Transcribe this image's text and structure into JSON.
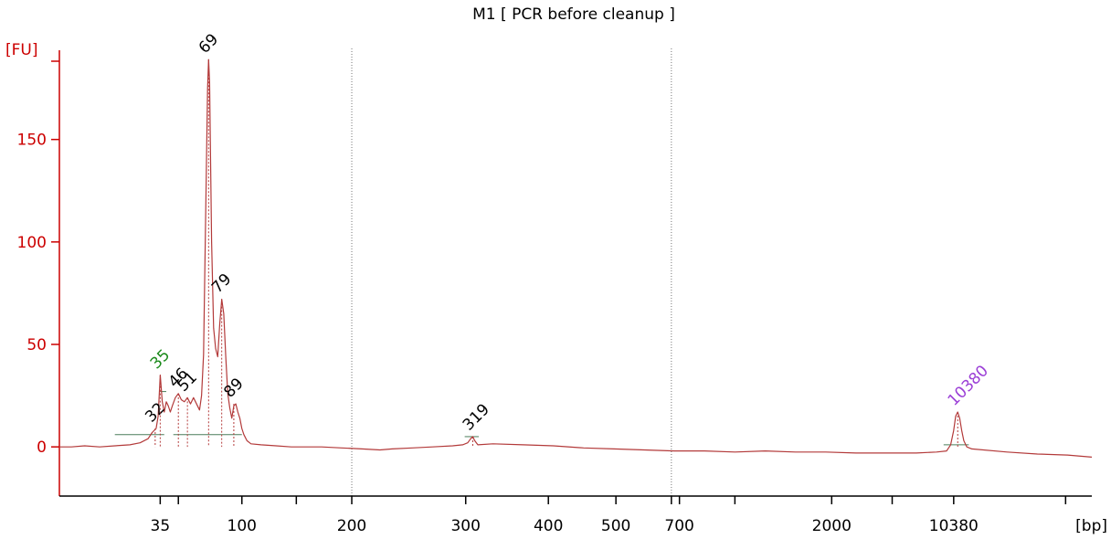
{
  "chart_data": {
    "type": "line",
    "title": "M1  [ PCR before cleanup ]",
    "ylabel": "[FU]",
    "xlabel": "[bp]",
    "ylim": [
      -24,
      198
    ],
    "y_ticks": [
      0,
      50,
      100,
      150
    ],
    "x_tick_labels": [
      "35",
      "100",
      "200",
      "300",
      "400",
      "500",
      "700",
      "2000",
      "10380"
    ],
    "colors": {
      "trace": "#b33a3a",
      "axis": "#cc0000",
      "baseline": "#4a7d5a",
      "marker_lower": "#1b8a1b",
      "marker_upper": "#9b3fd6",
      "peak_label": "#000000"
    },
    "trace": [
      [
        0,
        0
      ],
      [
        12,
        0
      ],
      [
        25,
        0.5
      ],
      [
        40,
        0
      ],
      [
        55,
        0.5
      ],
      [
        70,
        1
      ],
      [
        80,
        2
      ],
      [
        88,
        4
      ],
      [
        92,
        7
      ],
      [
        96,
        9
      ],
      [
        98,
        15
      ],
      [
        100,
        35
      ],
      [
        102,
        22
      ],
      [
        104,
        17
      ],
      [
        106,
        22
      ],
      [
        108,
        20
      ],
      [
        110,
        17
      ],
      [
        112,
        20
      ],
      [
        115,
        24
      ],
      [
        118,
        26
      ],
      [
        121,
        23
      ],
      [
        124,
        22
      ],
      [
        127,
        24
      ],
      [
        130,
        21
      ],
      [
        133,
        24
      ],
      [
        135,
        22
      ],
      [
        137,
        20
      ],
      [
        139,
        18
      ],
      [
        141,
        25
      ],
      [
        143,
        45
      ],
      [
        145,
        110
      ],
      [
        147,
        175
      ],
      [
        148,
        189
      ],
      [
        149,
        178
      ],
      [
        151,
        100
      ],
      [
        153,
        58
      ],
      [
        155,
        48
      ],
      [
        157,
        44
      ],
      [
        159,
        60
      ],
      [
        161,
        72
      ],
      [
        163,
        65
      ],
      [
        165,
        44
      ],
      [
        167,
        26
      ],
      [
        169,
        19
      ],
      [
        171,
        14
      ],
      [
        173,
        20
      ],
      [
        175,
        21
      ],
      [
        177,
        17
      ],
      [
        179,
        14
      ],
      [
        181,
        9
      ],
      [
        183,
        6
      ],
      [
        186,
        3
      ],
      [
        190,
        1.5
      ],
      [
        200,
        1
      ],
      [
        215,
        0.5
      ],
      [
        230,
        0
      ],
      [
        260,
        0
      ],
      [
        280,
        -0.5
      ],
      [
        300,
        -1
      ],
      [
        318,
        -1.5
      ],
      [
        330,
        -1
      ],
      [
        350,
        -0.5
      ],
      [
        370,
        0
      ],
      [
        390,
        0.5
      ],
      [
        400,
        1
      ],
      [
        405,
        2
      ],
      [
        408,
        4
      ],
      [
        410,
        5
      ],
      [
        412,
        3
      ],
      [
        415,
        1
      ],
      [
        430,
        1.5
      ],
      [
        460,
        1
      ],
      [
        490,
        0.5
      ],
      [
        520,
        -0.5
      ],
      [
        550,
        -1
      ],
      [
        580,
        -1.5
      ],
      [
        610,
        -2
      ],
      [
        640,
        -2
      ],
      [
        670,
        -2.5
      ],
      [
        700,
        -2
      ],
      [
        730,
        -2.5
      ],
      [
        760,
        -2.5
      ],
      [
        790,
        -3
      ],
      [
        820,
        -3
      ],
      [
        850,
        -3
      ],
      [
        870,
        -2.5
      ],
      [
        880,
        -2
      ],
      [
        884,
        1
      ],
      [
        887,
        8
      ],
      [
        889,
        15
      ],
      [
        891,
        17
      ],
      [
        893,
        14
      ],
      [
        895,
        8
      ],
      [
        897,
        3
      ],
      [
        900,
        0
      ],
      [
        905,
        -1
      ],
      [
        940,
        -2.5
      ],
      [
        970,
        -3.5
      ],
      [
        1000,
        -4
      ],
      [
        1024,
        -5
      ]
    ],
    "peaks": [
      {
        "label": "32",
        "x": 95,
        "y": 9,
        "type": "peak"
      },
      {
        "label": "35",
        "x": 100,
        "y": 35,
        "type": "lower_marker"
      },
      {
        "label": "46",
        "x": 118,
        "y": 26,
        "type": "peak"
      },
      {
        "label": "51",
        "x": 127,
        "y": 24,
        "type": "peak"
      },
      {
        "label": "69",
        "x": 148,
        "y": 189,
        "type": "peak"
      },
      {
        "label": "79",
        "x": 161,
        "y": 72,
        "type": "peak"
      },
      {
        "label": "89",
        "x": 173,
        "y": 21,
        "type": "peak"
      },
      {
        "label": "319",
        "x": 410,
        "y": 5,
        "type": "peak"
      },
      {
        "label": "10380",
        "x": 891,
        "y": 17,
        "type": "upper_marker"
      }
    ],
    "peak_baselines": [
      {
        "x1": 55,
        "x2": 104,
        "y": 6
      },
      {
        "x1": 100,
        "x2": 106,
        "y": 27
      },
      {
        "x1": 113,
        "x2": 181,
        "y": 6
      },
      {
        "x1": 402,
        "x2": 416,
        "y": 5
      },
      {
        "x1": 877,
        "x2": 902,
        "y": 1
      }
    ],
    "vertical_dotted_lines": [
      290,
      607
    ],
    "x_ticks": [
      {
        "x": 100,
        "label": "35"
      },
      {
        "x": 118,
        "label": ""
      },
      {
        "x": 181,
        "label": "100"
      },
      {
        "x": 235,
        "label": ""
      },
      {
        "x": 290,
        "label": "200"
      },
      {
        "x": 403,
        "label": "300"
      },
      {
        "x": 485,
        "label": "400"
      },
      {
        "x": 552,
        "label": "500"
      },
      {
        "x": 607,
        "label": ""
      },
      {
        "x": 615,
        "label": "700"
      },
      {
        "x": 670,
        "label": ""
      },
      {
        "x": 766,
        "label": "2000"
      },
      {
        "x": 826,
        "label": ""
      },
      {
        "x": 887,
        "label": "10380"
      },
      {
        "x": 998,
        "label": ""
      }
    ]
  }
}
